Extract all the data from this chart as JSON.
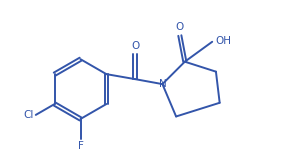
{
  "background_color": "#ffffff",
  "line_color": "#3355aa",
  "figsize": [
    2.88,
    1.57
  ],
  "dpi": 100,
  "lw": 1.4,
  "font_size": 7.5,
  "xlim": [
    -1.6,
    2.8
  ],
  "ylim": [
    -1.3,
    1.2
  ]
}
